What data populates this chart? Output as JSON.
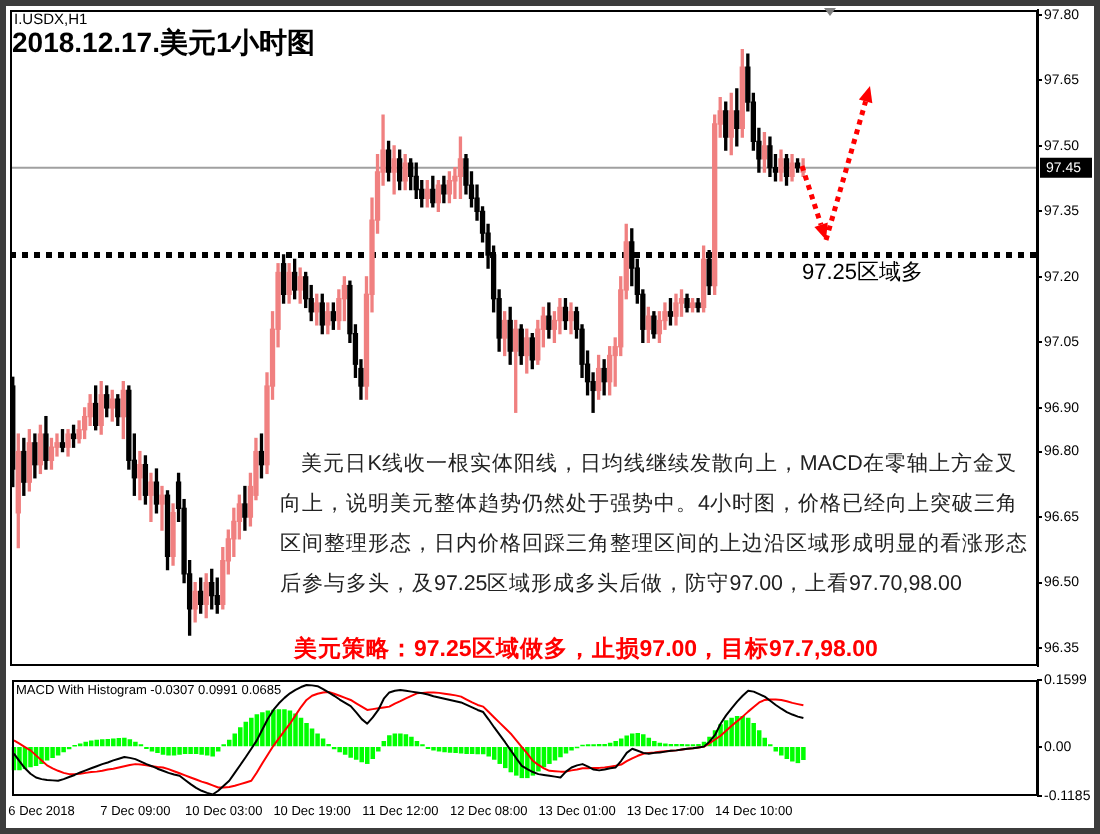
{
  "chart_data": [
    {
      "type": "candlestick",
      "title": "2018.12.17.美元1小时图",
      "subtitle": "I.USDX,H1",
      "categories": [
        null,
        null,
        null,
        null,
        null,
        null,
        null,
        null,
        null,
        null,
        null,
        null,
        null,
        null,
        null,
        null,
        null,
        null,
        null,
        null,
        null,
        null,
        null,
        null,
        null,
        null,
        null,
        null,
        null,
        null,
        null,
        null,
        null,
        null,
        null,
        null,
        null,
        null,
        null,
        null,
        null,
        null,
        null,
        null,
        null,
        null,
        null,
        null,
        null,
        null,
        null,
        null,
        null,
        null,
        null,
        null,
        null,
        null,
        null,
        null,
        null,
        null,
        null,
        null,
        null,
        null,
        null,
        null,
        null,
        null,
        null,
        null,
        null,
        null,
        null,
        null,
        null,
        null,
        null,
        null,
        null,
        null,
        null,
        null,
        null,
        null,
        null,
        null,
        null,
        null,
        null,
        null,
        null,
        null,
        null,
        null,
        null,
        null,
        null,
        null,
        null,
        null,
        null,
        null,
        null,
        null,
        null,
        null,
        null,
        null,
        null,
        null,
        null,
        null,
        null,
        null,
        null,
        null,
        null,
        null,
        null,
        null,
        null,
        null,
        null,
        null,
        null,
        null,
        null,
        null,
        null,
        null,
        null,
        null,
        null,
        null,
        null,
        null,
        null,
        null,
        null,
        null,
        null,
        null,
        null,
        null,
        null,
        null,
        null,
        null,
        null,
        null,
        null,
        null,
        null,
        null,
        null,
        null,
        null,
        null,
        null,
        null,
        null,
        null,
        null,
        null,
        null,
        null,
        null,
        null,
        null,
        null,
        null,
        null,
        null,
        null,
        null,
        null,
        null,
        null,
        null,
        null,
        null,
        null,
        null,
        null
      ],
      "ohlc": [
        [
          96.95,
          96.97,
          96.72,
          96.76
        ],
        [
          96.66,
          96.84,
          96.58,
          96.8
        ],
        [
          96.8,
          96.83,
          96.7,
          96.73
        ],
        [
          96.73,
          96.85,
          96.71,
          96.82
        ],
        [
          96.82,
          96.84,
          96.74,
          96.77
        ],
        [
          96.77,
          96.86,
          96.75,
          96.84
        ],
        [
          96.84,
          96.88,
          96.76,
          96.78
        ],
        [
          96.78,
          96.83,
          96.76,
          96.81
        ],
        [
          96.81,
          96.84,
          96.79,
          96.82
        ],
        [
          96.82,
          96.85,
          96.8,
          96.81
        ],
        [
          96.81,
          96.85,
          96.79,
          96.84
        ],
        [
          96.84,
          96.86,
          96.81,
          96.83
        ],
        [
          96.83,
          96.87,
          96.82,
          96.85
        ],
        [
          96.85,
          96.9,
          96.83,
          96.88
        ],
        [
          96.88,
          96.93,
          96.86,
          96.91
        ],
        [
          96.91,
          96.95,
          96.85,
          96.86
        ],
        [
          96.86,
          96.96,
          96.84,
          96.93
        ],
        [
          96.93,
          96.95,
          96.88,
          96.9
        ],
        [
          96.9,
          96.94,
          96.87,
          96.92
        ],
        [
          96.92,
          96.93,
          96.86,
          96.88
        ],
        [
          96.88,
          96.96,
          96.83,
          96.94
        ],
        [
          96.94,
          96.95,
          96.76,
          96.78
        ],
        [
          96.78,
          96.84,
          96.7,
          96.74
        ],
        [
          96.74,
          96.8,
          96.69,
          96.77
        ],
        [
          96.77,
          96.79,
          96.68,
          96.7
        ],
        [
          96.7,
          96.75,
          96.64,
          96.73
        ],
        [
          96.73,
          96.76,
          96.66,
          96.68
        ],
        [
          96.68,
          96.72,
          96.62,
          96.7
        ],
        [
          96.7,
          96.71,
          96.53,
          96.56
        ],
        [
          96.56,
          96.68,
          96.54,
          96.66
        ],
        [
          96.73,
          96.75,
          96.64,
          96.67
        ],
        [
          96.67,
          96.69,
          96.5,
          96.52
        ],
        [
          96.52,
          96.55,
          96.38,
          96.44
        ],
        [
          96.44,
          96.5,
          96.41,
          96.48
        ],
        [
          96.48,
          96.51,
          96.43,
          96.45
        ],
        [
          96.45,
          96.52,
          96.42,
          96.5
        ],
        [
          96.5,
          96.53,
          96.44,
          96.47
        ],
        [
          96.47,
          96.51,
          96.43,
          96.45
        ],
        [
          96.45,
          96.58,
          96.44,
          96.55
        ],
        [
          96.55,
          96.62,
          96.52,
          96.6
        ],
        [
          96.6,
          96.67,
          96.56,
          96.64
        ],
        [
          96.64,
          96.7,
          96.6,
          96.68
        ],
        [
          96.68,
          96.72,
          96.62,
          96.65
        ],
        [
          96.65,
          96.75,
          96.63,
          96.72
        ],
        [
          96.7,
          96.83,
          96.69,
          96.8
        ],
        [
          96.8,
          96.84,
          96.74,
          96.77
        ],
        [
          96.77,
          96.98,
          96.75,
          96.95
        ],
        [
          96.95,
          97.12,
          96.92,
          97.08
        ],
        [
          97.08,
          97.23,
          97.04,
          97.21
        ],
        [
          97.23,
          97.25,
          97.14,
          97.16
        ],
        [
          97.16,
          97.23,
          97.14,
          97.21
        ],
        [
          97.21,
          97.24,
          97.15,
          97.17
        ],
        [
          97.17,
          97.22,
          97.14,
          97.2
        ],
        [
          97.2,
          97.21,
          97.13,
          97.15
        ],
        [
          97.15,
          97.18,
          97.1,
          97.12
        ],
        [
          97.12,
          97.16,
          97.09,
          97.14
        ],
        [
          97.14,
          97.16,
          97.07,
          97.09
        ],
        [
          97.09,
          97.14,
          97.07,
          97.12
        ],
        [
          97.12,
          97.14,
          97.08,
          97.1
        ],
        [
          97.1,
          97.17,
          97.08,
          97.15
        ],
        [
          97.15,
          97.2,
          97.1,
          97.18
        ],
        [
          97.18,
          97.19,
          97.05,
          97.07
        ],
        [
          97.07,
          97.09,
          96.97,
          97.0
        ],
        [
          96.99,
          97.01,
          96.92,
          96.95
        ],
        [
          96.95,
          97.2,
          96.92,
          97.16
        ],
        [
          97.16,
          97.38,
          97.12,
          97.33
        ],
        [
          97.33,
          97.48,
          97.3,
          97.44
        ],
        [
          97.44,
          97.57,
          97.41,
          97.49
        ],
        [
          97.49,
          97.51,
          97.42,
          97.44
        ],
        [
          97.44,
          97.5,
          97.39,
          97.47
        ],
        [
          97.47,
          97.49,
          97.4,
          97.42
        ],
        [
          97.42,
          97.48,
          97.4,
          97.46
        ],
        [
          97.46,
          97.47,
          97.4,
          97.43
        ],
        [
          97.43,
          97.46,
          97.38,
          97.4
        ],
        [
          97.4,
          97.42,
          97.36,
          97.38
        ],
        [
          97.38,
          97.42,
          97.36,
          97.4
        ],
        [
          97.4,
          97.43,
          97.36,
          97.37
        ],
        [
          97.37,
          97.42,
          97.35,
          97.41
        ],
        [
          97.41,
          97.43,
          97.37,
          97.39
        ],
        [
          97.39,
          97.44,
          97.37,
          97.42
        ],
        [
          97.42,
          97.45,
          97.38,
          97.43
        ],
        [
          97.43,
          97.52,
          97.38,
          97.47
        ],
        [
          97.47,
          97.48,
          97.39,
          97.41
        ],
        [
          97.41,
          97.44,
          97.36,
          97.38
        ],
        [
          97.38,
          97.41,
          97.33,
          97.35
        ],
        [
          97.35,
          97.36,
          97.28,
          97.3
        ],
        [
          97.3,
          97.32,
          97.22,
          97.25
        ],
        [
          97.25,
          97.27,
          97.12,
          97.15
        ],
        [
          97.15,
          97.17,
          97.03,
          97.06
        ],
        [
          97.06,
          97.12,
          97.02,
          97.1
        ],
        [
          97.1,
          97.13,
          97.0,
          97.03
        ],
        [
          97.03,
          97.1,
          96.89,
          97.08
        ],
        [
          97.08,
          97.09,
          97.0,
          97.02
        ],
        [
          97.02,
          97.08,
          96.98,
          97.06
        ],
        [
          97.06,
          97.07,
          96.99,
          97.01
        ],
        [
          97.01,
          97.1,
          97.0,
          97.08
        ],
        [
          97.08,
          97.13,
          97.04,
          97.11
        ],
        [
          97.11,
          97.14,
          97.06,
          97.08
        ],
        [
          97.08,
          97.12,
          97.05,
          97.1
        ],
        [
          97.1,
          97.15,
          97.07,
          97.13
        ],
        [
          97.13,
          97.15,
          97.08,
          97.1
        ],
        [
          97.1,
          97.14,
          97.07,
          97.12
        ],
        [
          97.12,
          97.13,
          97.06,
          97.08
        ],
        [
          97.08,
          97.09,
          96.97,
          97.0
        ],
        [
          97.0,
          97.03,
          96.93,
          96.96
        ],
        [
          96.96,
          96.98,
          96.89,
          96.94
        ],
        [
          96.94,
          97.02,
          96.92,
          96.99
        ],
        [
          96.99,
          97.01,
          96.93,
          96.96
        ],
        [
          96.96,
          97.04,
          96.93,
          97.02
        ],
        [
          97.02,
          97.06,
          96.95,
          97.04
        ],
        [
          97.04,
          97.2,
          97.02,
          97.17
        ],
        [
          97.17,
          97.32,
          97.15,
          97.28
        ],
        [
          97.28,
          97.31,
          97.18,
          97.22
        ],
        [
          97.22,
          97.24,
          97.14,
          97.16
        ],
        [
          97.16,
          97.17,
          97.05,
          97.08
        ],
        [
          97.08,
          97.13,
          97.05,
          97.11
        ],
        [
          97.11,
          97.12,
          97.06,
          97.07
        ],
        [
          97.07,
          97.12,
          97.05,
          97.1
        ],
        [
          97.1,
          97.14,
          97.08,
          97.12
        ],
        [
          97.12,
          97.15,
          97.09,
          97.11
        ],
        [
          97.11,
          97.16,
          97.09,
          97.14
        ],
        [
          97.14,
          97.17,
          97.11,
          97.15
        ],
        [
          97.15,
          97.16,
          97.12,
          97.13
        ],
        [
          97.13,
          97.15,
          97.12,
          97.14
        ],
        [
          97.14,
          97.15,
          97.12,
          97.13
        ],
        [
          97.13,
          97.27,
          97.12,
          97.24
        ],
        [
          97.24,
          97.26,
          97.16,
          97.18
        ],
        [
          97.18,
          97.57,
          97.16,
          97.55
        ],
        [
          97.55,
          97.61,
          97.52,
          97.58
        ],
        [
          97.58,
          97.6,
          97.49,
          97.52
        ],
        [
          97.52,
          97.62,
          97.48,
          97.58
        ],
        [
          97.58,
          97.63,
          97.5,
          97.54
        ],
        [
          97.54,
          97.72,
          97.52,
          97.68
        ],
        [
          97.68,
          97.71,
          97.58,
          97.6
        ],
        [
          97.6,
          97.62,
          97.49,
          97.51
        ],
        [
          97.51,
          97.54,
          97.44,
          97.47
        ],
        [
          97.47,
          97.53,
          97.44,
          97.5
        ],
        [
          97.5,
          97.52,
          97.43,
          97.45
        ],
        [
          97.45,
          97.48,
          97.42,
          97.44
        ],
        [
          97.44,
          97.49,
          97.42,
          97.47
        ],
        [
          97.47,
          97.48,
          97.41,
          97.43
        ],
        [
          97.43,
          97.48,
          97.42,
          97.46
        ],
        [
          97.46,
          97.47,
          97.44,
          97.45
        ],
        [
          97.44,
          97.47,
          97.43,
          97.45
        ],
        null,
        null,
        null,
        null,
        null,
        null,
        null,
        null,
        null,
        null,
        null,
        null,
        null,
        null,
        null,
        null,
        null,
        null,
        null,
        null,
        null,
        null,
        null,
        null,
        null,
        null,
        null,
        null,
        null,
        null,
        null,
        null,
        null,
        null,
        null,
        null,
        null,
        null,
        null,
        null,
        null,
        null
      ],
      "colors": [
        "#000000",
        "#f08080",
        "#000000",
        "#f08080",
        "#000000",
        "#f08080",
        "#000000",
        "#f08080",
        "#f08080",
        "#000000",
        "#f08080",
        "#000000",
        "#f08080",
        "#f08080",
        "#f08080",
        "#000000",
        "#f08080",
        "#000000",
        "#f08080",
        "#000000",
        "#f08080",
        "#000000",
        "#000000",
        "#f08080",
        "#000000",
        "#f08080",
        "#000000",
        "#f08080",
        "#000000",
        "#f08080",
        "#000000",
        "#000000",
        "#000000",
        "#f08080",
        "#000000",
        "#f08080",
        "#000000",
        "#000000",
        "#f08080",
        "#f08080",
        "#f08080",
        "#f08080",
        "#000000",
        "#f08080",
        "#f08080",
        "#000000",
        "#f08080",
        "#f08080",
        "#f08080",
        "#000000",
        "#f08080",
        "#000000",
        "#f08080",
        "#000000",
        "#000000",
        "#f08080",
        "#000000",
        "#f08080",
        "#000000",
        "#f08080",
        "#f08080",
        "#000000",
        "#000000",
        "#000000",
        "#f08080",
        "#f08080",
        "#f08080",
        "#f08080",
        "#000000",
        "#f08080",
        "#000000",
        "#f08080",
        "#000000",
        "#000000",
        "#000000",
        "#f08080",
        "#000000",
        "#f08080",
        "#000000",
        "#f08080",
        "#f08080",
        "#f08080",
        "#000000",
        "#000000",
        "#000000",
        "#000000",
        "#000000",
        "#000000",
        "#000000",
        "#f08080",
        "#000000",
        "#f08080",
        "#000000",
        "#f08080",
        "#000000",
        "#f08080",
        "#f08080",
        "#000000",
        "#f08080",
        "#f08080",
        "#000000",
        "#f08080",
        "#000000",
        "#000000",
        "#000000",
        "#000000",
        "#f08080",
        "#000000",
        "#f08080",
        "#f08080",
        "#f08080",
        "#f08080",
        "#000000",
        "#000000",
        "#000000",
        "#f08080",
        "#000000",
        "#f08080",
        "#f08080",
        "#000000",
        "#f08080",
        "#f08080",
        "#000000",
        "#f08080",
        "#000000",
        "#f08080",
        "#000000",
        "#f08080",
        "#f08080",
        "#000000",
        "#f08080",
        "#000000",
        "#f08080",
        "#000000",
        "#000000",
        "#000000",
        "#f08080",
        "#000000",
        "#000000",
        "#f08080",
        "#000000",
        "#f08080",
        "#000000",
        "#f08080",
        null,
        null,
        null,
        null,
        null,
        null,
        null,
        null,
        null,
        null,
        null,
        null,
        null,
        null,
        null,
        null,
        null,
        null,
        null,
        null,
        null,
        null,
        null,
        null,
        null,
        null,
        null,
        null,
        null,
        null,
        null,
        null,
        null,
        null,
        null,
        null,
        null,
        null,
        null,
        null,
        null,
        null
      ],
      "ylim": [
        96.31,
        97.81
      ],
      "yticks": [
        {
          "value": 97.8,
          "label": "97.80"
        },
        97.65,
        {
          "value": 97.5,
          "label": "97.50"
        },
        97.35,
        {
          "value": 97.2,
          "label": "97.20"
        },
        97.05,
        {
          "value": 96.9,
          "label": "96.90"
        },
        {
          "value": 96.8,
          "label": "96.80"
        },
        96.65,
        {
          "value": 96.5,
          "label": "96.50"
        },
        96.35
      ],
      "tick_labels": "y",
      "ref_lines": [
        {
          "axis": "y",
          "value": 97.25,
          "label": "97.25区域多",
          "color": "#000000",
          "line_style": "dotted"
        },
        {
          "axis": "y",
          "value": 97.45,
          "label": "97.45",
          "color": "#a0a0a0"
        }
      ],
      "annotations": [
        "美元日K线收一根实体阳线，日均线继续发散向上，MACD在零轴上方金叉向上，说明美元整体趋势仍然处于强势中。4小时图，价格已经向上突破三角区间整理形态，日内价格回踩三角整理区间的上边沿区域形成明显的看涨形态后参与多头，及97.25区域形成多头后做，防守97.00，上看97.70,98.00",
        "美元策略：97.25区域做多，止损97.00，目标97.7,98.00"
      ]
    },
    {
      "type": "bar",
      "title": "MACD With Histogram -0.0307 0.0991 0.0685",
      "categories": [
        null,
        null,
        null,
        null,
        null,
        "6 Dec 2018",
        null,
        null,
        null,
        null,
        null,
        null,
        null,
        null,
        null,
        null,
        null,
        null,
        null,
        null,
        null,
        null,
        "7 Dec 09:00",
        null,
        null,
        null,
        null,
        null,
        null,
        null,
        null,
        null,
        null,
        null,
        null,
        null,
        null,
        null,
        "10 Dec 03:00",
        null,
        null,
        null,
        null,
        null,
        null,
        null,
        null,
        null,
        null,
        null,
        null,
        null,
        null,
        null,
        "10 Dec 19:00",
        null,
        null,
        null,
        null,
        null,
        null,
        null,
        null,
        null,
        null,
        null,
        null,
        null,
        null,
        null,
        "11 Dec 12:00",
        null,
        null,
        null,
        null,
        null,
        null,
        null,
        null,
        null,
        null,
        null,
        null,
        null,
        null,
        null,
        "12 Dec 08:00",
        null,
        null,
        null,
        null,
        null,
        null,
        null,
        null,
        null,
        null,
        null,
        null,
        null,
        null,
        null,
        "13 Dec 01:00",
        null,
        null,
        null,
        null,
        null,
        null,
        null,
        null,
        null,
        null,
        null,
        null,
        null,
        null,
        null,
        "13 Dec 17:00",
        null,
        null,
        null,
        null,
        null,
        null,
        null,
        null,
        null,
        null,
        null,
        null,
        null,
        null,
        null,
        "14 Dec 10:00",
        null,
        null,
        null,
        null,
        null,
        null,
        null,
        null,
        null,
        null,
        null,
        null,
        null,
        null,
        null,
        null,
        null,
        null,
        null,
        null,
        null,
        null,
        null,
        null,
        null,
        null,
        null,
        null,
        null,
        null,
        null,
        null,
        null,
        null,
        null,
        null,
        null,
        null,
        null,
        null,
        null,
        null,
        null,
        null,
        null,
        null,
        null,
        null,
        null,
        null,
        null
      ],
      "series": [
        {
          "type": "bar",
          "color": "#00ff00",
          "values": [
            -0.055,
            -0.055,
            -0.052,
            -0.048,
            -0.045,
            -0.04,
            -0.032,
            -0.026,
            -0.02,
            -0.012,
            -0.005,
            0.002,
            0.006,
            0.01,
            0.013,
            0.015,
            0.016,
            0.017,
            0.018,
            0.019,
            0.02,
            0.016,
            0.01,
            0.004,
            -0.004,
            -0.01,
            -0.014,
            -0.018,
            -0.02,
            -0.02,
            -0.018,
            -0.016,
            -0.016,
            -0.016,
            -0.018,
            -0.02,
            -0.022,
            -0.01,
            0.004,
            0.015,
            0.03,
            0.045,
            0.058,
            0.068,
            0.076,
            0.081,
            0.085,
            0.087,
            0.088,
            0.088,
            0.085,
            0.078,
            0.068,
            0.055,
            0.042,
            0.03,
            0.018,
            0.005,
            -0.005,
            -0.012,
            -0.018,
            -0.025,
            -0.03,
            -0.036,
            -0.04,
            -0.028,
            -0.01,
            0.012,
            0.026,
            0.03,
            0.03,
            0.028,
            0.022,
            0.012,
            0.004,
            -0.004,
            -0.008,
            -0.01,
            -0.012,
            -0.013,
            -0.014,
            -0.015,
            -0.016,
            -0.016,
            -0.017,
            -0.017,
            -0.022,
            -0.03,
            -0.04,
            -0.05,
            -0.06,
            -0.068,
            -0.074,
            -0.074,
            -0.068,
            -0.058,
            -0.048,
            -0.04,
            -0.032,
            -0.024,
            -0.015,
            -0.008,
            -0.002,
            0.003,
            0.004,
            0.004,
            0.005,
            0.005,
            0.008,
            0.012,
            0.018,
            0.025,
            0.03,
            0.031,
            0.028,
            0.02,
            0.012,
            0.008,
            0.006,
            0.005,
            0.005,
            0.005,
            0.004,
            0.004,
            0.005,
            0.01,
            0.022,
            0.038,
            0.052,
            0.062,
            0.068,
            0.072,
            0.072,
            0.068,
            0.055,
            0.038,
            0.02,
            0.004,
            -0.01,
            -0.02,
            -0.028,
            -0.034,
            -0.038,
            -0.0307,
            null,
            null,
            null,
            null,
            null,
            null,
            null,
            null,
            null,
            null,
            null,
            null,
            null,
            null,
            null,
            null,
            null,
            null,
            null,
            null,
            null,
            null,
            null,
            null,
            null,
            null,
            null,
            null,
            null,
            null,
            null,
            null,
            null,
            null,
            null,
            null,
            null,
            null,
            null,
            null,
            null,
            null
          ]
        },
        {
          "type": "line",
          "color": "#000000",
          "values": [
            -0.017,
            -0.035,
            -0.052,
            -0.065,
            -0.074,
            -0.078,
            -0.08,
            -0.081,
            -0.082,
            -0.078,
            -0.073,
            -0.068,
            -0.062,
            -0.057,
            -0.052,
            -0.047,
            -0.042,
            -0.038,
            -0.033,
            -0.029,
            -0.025,
            -0.027,
            -0.03,
            -0.036,
            -0.042,
            -0.047,
            -0.053,
            -0.058,
            -0.063,
            -0.067,
            -0.07,
            -0.08,
            -0.09,
            -0.099,
            -0.106,
            -0.111,
            -0.115,
            -0.106,
            -0.094,
            -0.082,
            -0.063,
            -0.044,
            -0.025,
            -0.005,
            0.015,
            0.041,
            0.067,
            0.088,
            0.104,
            0.117,
            0.128,
            0.136,
            0.143,
            0.148,
            0.147,
            0.145,
            0.138,
            0.13,
            0.122,
            0.113,
            0.105,
            0.097,
            0.082,
            0.066,
            0.055,
            0.07,
            0.088,
            0.115,
            0.13,
            0.134,
            0.136,
            0.134,
            0.132,
            0.13,
            0.128,
            0.125,
            0.121,
            0.118,
            0.115,
            0.112,
            0.109,
            0.106,
            0.1,
            0.094,
            0.088,
            0.083,
            0.065,
            0.046,
            0.028,
            0.01,
            -0.009,
            -0.028,
            -0.046,
            -0.054,
            -0.061,
            -0.066,
            -0.068,
            -0.07,
            -0.072,
            -0.074,
            -0.06,
            -0.05,
            -0.045,
            -0.042,
            -0.048,
            -0.055,
            -0.057,
            -0.055,
            -0.052,
            -0.05,
            -0.034,
            -0.015,
            -0.005,
            -0.01,
            -0.015,
            -0.017,
            -0.015,
            -0.014,
            -0.012,
            -0.01,
            -0.009,
            -0.007,
            -0.005,
            -0.004,
            -0.002,
            0,
            0.012,
            0.028,
            0.055,
            0.075,
            0.092,
            0.108,
            0.122,
            0.134,
            0.132,
            0.126,
            0.12,
            0.11,
            0.1,
            0.091,
            0.083,
            0.077,
            0.072,
            0.0685,
            null,
            null,
            null,
            null,
            null,
            null,
            null,
            null,
            null,
            null,
            null,
            null,
            null,
            null,
            null,
            null,
            null,
            null,
            null,
            null,
            null,
            null,
            null,
            null,
            null,
            null,
            null,
            null,
            null,
            null,
            null,
            null,
            null,
            null,
            null,
            null,
            null,
            null,
            null,
            null,
            null,
            null
          ]
        },
        {
          "type": "line",
          "color": "#ff0000",
          "values": [
            0.015,
            0.007,
            -0.001,
            -0.009,
            -0.021,
            -0.033,
            -0.045,
            -0.052,
            -0.058,
            -0.063,
            -0.066,
            -0.066,
            -0.065,
            -0.063,
            -0.061,
            -0.06,
            -0.058,
            -0.055,
            -0.053,
            -0.05,
            -0.047,
            -0.044,
            -0.042,
            -0.043,
            -0.045,
            -0.047,
            -0.049,
            -0.05,
            -0.054,
            -0.059,
            -0.064,
            -0.069,
            -0.074,
            -0.079,
            -0.084,
            -0.088,
            -0.093,
            -0.098,
            -0.098,
            -0.097,
            -0.094,
            -0.09,
            -0.086,
            -0.082,
            -0.062,
            -0.04,
            -0.019,
            0.002,
            0.02,
            0.038,
            0.055,
            0.075,
            0.095,
            0.112,
            0.122,
            0.127,
            0.13,
            0.131,
            0.127,
            0.122,
            0.117,
            0.112,
            0.104,
            0.096,
            0.088,
            0.09,
            0.092,
            0.094,
            0.096,
            0.103,
            0.109,
            0.116,
            0.122,
            0.128,
            0.129,
            0.13,
            0.13,
            0.129,
            0.127,
            0.125,
            0.123,
            0.12,
            0.113,
            0.106,
            0.1,
            0.096,
            0.083,
            0.07,
            0.057,
            0.044,
            0.031,
            0.015,
            -0.001,
            -0.017,
            -0.034,
            -0.044,
            -0.052,
            -0.058,
            -0.059,
            -0.06,
            -0.06,
            -0.057,
            -0.055,
            -0.052,
            -0.052,
            -0.051,
            -0.051,
            -0.05,
            -0.048,
            -0.046,
            -0.043,
            -0.035,
            -0.028,
            -0.022,
            -0.017,
            -0.015,
            -0.014,
            -0.012,
            -0.011,
            -0.01,
            -0.009,
            -0.007,
            -0.005,
            -0.004,
            -0.002,
            0,
            0.008,
            0.017,
            0.026,
            0.038,
            0.05,
            0.061,
            0.072,
            0.084,
            0.095,
            0.106,
            0.112,
            0.113,
            0.113,
            0.112,
            0.109,
            0.105,
            0.102,
            0.0991,
            null,
            null,
            null,
            null,
            null,
            null,
            null,
            null,
            null,
            null,
            null,
            null,
            null,
            null,
            null,
            null,
            null,
            null,
            null,
            null,
            null,
            null,
            null,
            null,
            null,
            null,
            null,
            null,
            null,
            null,
            null,
            null,
            null,
            null,
            null,
            null,
            null,
            null,
            null,
            null,
            null,
            null
          ]
        }
      ],
      "ylim": [
        -0.1185,
        0.1599
      ],
      "yticks": [
        0.1599,
        {
          "value": 0,
          "label": "0.00"
        },
        -0.1185
      ]
    }
  ]
}
